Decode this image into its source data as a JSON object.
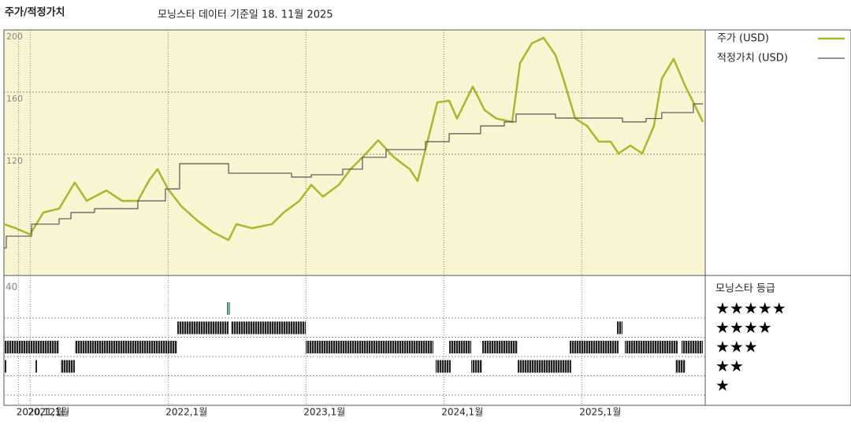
{
  "chart_data": {
    "type": "line",
    "title": "주가/적정가치",
    "subtitle": "모닝스타 데이터 기준일 18. 11월 2025",
    "xlim": [
      2020.81,
      2025.896
    ],
    "xticks": [
      {
        "value": 2020.917,
        "label": "2020,12월"
      },
      {
        "value": 2021.0,
        "label": "2021,1월"
      },
      {
        "value": 2022.0,
        "label": "2022,1월"
      },
      {
        "value": 2023.0,
        "label": "2023,1월"
      },
      {
        "value": 2024.0,
        "label": "2024,1월"
      },
      {
        "value": 2025.0,
        "label": "2025,1월"
      }
    ],
    "ylim": [
      42,
      200
    ],
    "yticks": [
      120,
      160,
      200
    ],
    "grid": true,
    "series": [
      {
        "name": "주가 (USD)",
        "color": "#a9b72a",
        "step": false,
        "x": [
          2020.81,
          2020.896,
          2020.999,
          2021.096,
          2021.21,
          2021.324,
          2021.41,
          2021.553,
          2021.667,
          2021.781,
          2021.867,
          2021.924,
          2021.999,
          2022.096,
          2022.21,
          2022.324,
          2022.439,
          2022.496,
          2022.61,
          2022.753,
          2022.839,
          2022.953,
          2023.039,
          2023.124,
          2023.239,
          2023.324,
          2023.41,
          2023.524,
          2023.639,
          2023.753,
          2023.81,
          2023.867,
          2023.953,
          2024.039,
          2024.096,
          2024.21,
          2024.296,
          2024.381,
          2024.496,
          2024.553,
          2024.639,
          2024.724,
          2024.81,
          2024.867,
          2024.953,
          2025.039,
          2025.124,
          2025.21,
          2025.267,
          2025.353,
          2025.439,
          2025.524,
          2025.581,
          2025.667,
          2025.753,
          2025.81,
          2025.879
        ],
        "values": [
          75,
          72.4,
          68.4,
          82.5,
          85,
          101.8,
          90,
          96.7,
          90,
          90,
          103.8,
          110.4,
          97.7,
          86.6,
          77.5,
          69.9,
          64.8,
          75,
          72.4,
          75,
          82.5,
          90,
          100.3,
          92.7,
          100.3,
          110.4,
          118,
          129,
          118,
          110.4,
          102.8,
          123,
          153.4,
          154.4,
          143,
          163.5,
          148.4,
          143,
          140.8,
          178.7,
          191.4,
          194.9,
          183.8,
          168.6,
          143,
          138.2,
          128.1,
          128.1,
          120.5,
          125.6,
          120.5,
          138.2,
          168.6,
          181.3,
          163.5,
          153.4,
          140.8
        ]
      },
      {
        "name": "적정가치 (USD)",
        "color": "#555555",
        "step": true,
        "x": [
          2020.81,
          2020.827,
          2021.01,
          2021.21,
          2021.296,
          2021.467,
          2021.781,
          2021.981,
          2022.084,
          2022.439,
          2022.896,
          2023.039,
          2023.267,
          2023.41,
          2023.581,
          2023.867,
          2024.039,
          2024.267,
          2024.439,
          2024.524,
          2024.81,
          2025.296,
          2025.467,
          2025.581,
          2025.81,
          2025.879
        ],
        "values": [
          59.7,
          67.3,
          75,
          78.5,
          82.5,
          85,
          90,
          97.7,
          113.9,
          107.8,
          105.3,
          106.8,
          110.4,
          118,
          123,
          128.1,
          133.2,
          138.2,
          140.8,
          145.8,
          143.3,
          140.8,
          143,
          146.8,
          152.4,
          152.4
        ]
      }
    ],
    "rating_axis_label": "40",
    "rating_title": "모닝스타 등급",
    "rating_labels": [
      "★★★★★",
      "★★★★",
      "★★★",
      "★★",
      "★"
    ],
    "rating_colors": {
      "5": "#4f8a6e",
      "other": "#333333"
    },
    "rating_segments": {
      "start": [
        2020.81,
        2020.81,
        2021.039,
        2021.221,
        2021.324,
        2022.067,
        2022.427,
        2022.456,
        2022.999,
        2023.941,
        2024.039,
        2024.199,
        2024.279,
        2024.536,
        2024.913,
        2025.256,
        2025.313,
        2025.679,
        2025.724
      ],
      "end": [
        2021.21,
        2020.827,
        2021.05,
        2021.324,
        2022.067,
        2022.439,
        2022.45,
        2022.999,
        2023.924,
        2024.05,
        2024.199,
        2024.279,
        2024.536,
        2024.924,
        2025.267,
        2025.296,
        2025.696,
        2025.753,
        2025.879
      ],
      "stars": [
        3,
        2,
        2,
        2,
        3,
        4,
        5,
        4,
        3,
        2,
        3,
        2,
        3,
        2,
        3,
        4,
        3,
        2,
        3
      ]
    }
  }
}
